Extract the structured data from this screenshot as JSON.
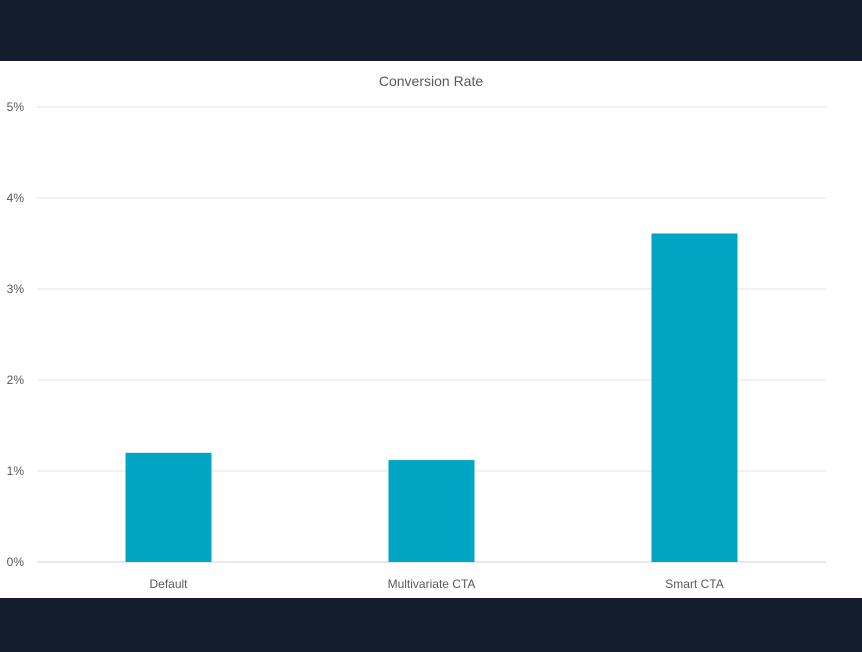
{
  "chart_data": {
    "type": "bar",
    "title": "Conversion Rate",
    "categories": [
      "Default",
      "Multivariate CTA",
      "Smart CTA"
    ],
    "values": [
      1.2,
      1.12,
      3.61
    ],
    "ylim": [
      0,
      5
    ],
    "yticks": [
      0,
      1,
      2,
      3,
      4,
      5
    ],
    "ytick_labels": [
      "0%",
      "1%",
      "2%",
      "3%",
      "4%",
      "5%"
    ],
    "xlabel": "",
    "ylabel": "",
    "grid": true,
    "legend": "none",
    "bar_color": "#00a5c3"
  }
}
